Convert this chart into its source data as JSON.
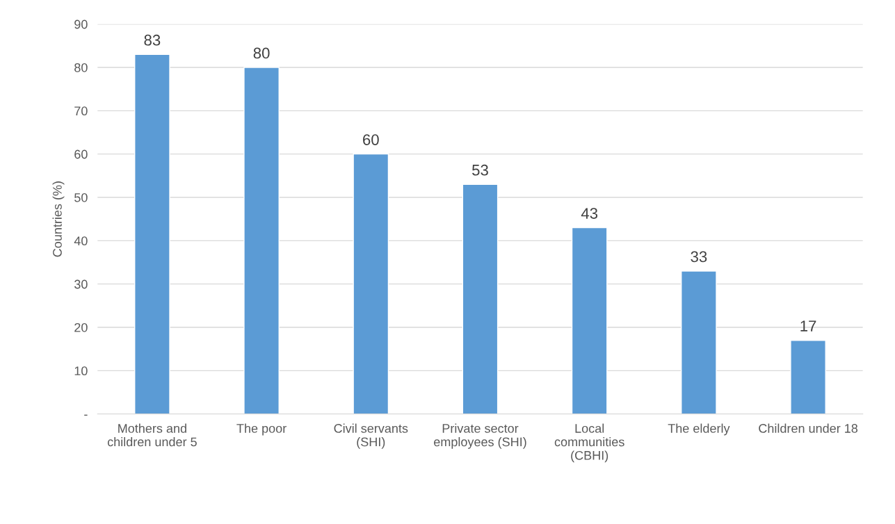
{
  "chart_data": {
    "type": "bar",
    "ylabel": "Countries (%)",
    "categories": [
      "Mothers and\nchildren under 5",
      "The poor",
      "Civil servants\n(SHI)",
      "Private sector\nemployees (SHI)",
      "Local\ncommunities\n(CBHI)",
      "The elderly",
      "Children under 18"
    ],
    "values": [
      83,
      80,
      60,
      53,
      43,
      33,
      17
    ],
    "color": "#5b9bd5",
    "ylim": [
      0,
      90
    ],
    "yticks": [
      {
        "value": 0,
        "label": "-"
      },
      10,
      20,
      30,
      40,
      50,
      60,
      70,
      80,
      90
    ],
    "grid": "y",
    "data_labels": true,
    "legend": false
  }
}
